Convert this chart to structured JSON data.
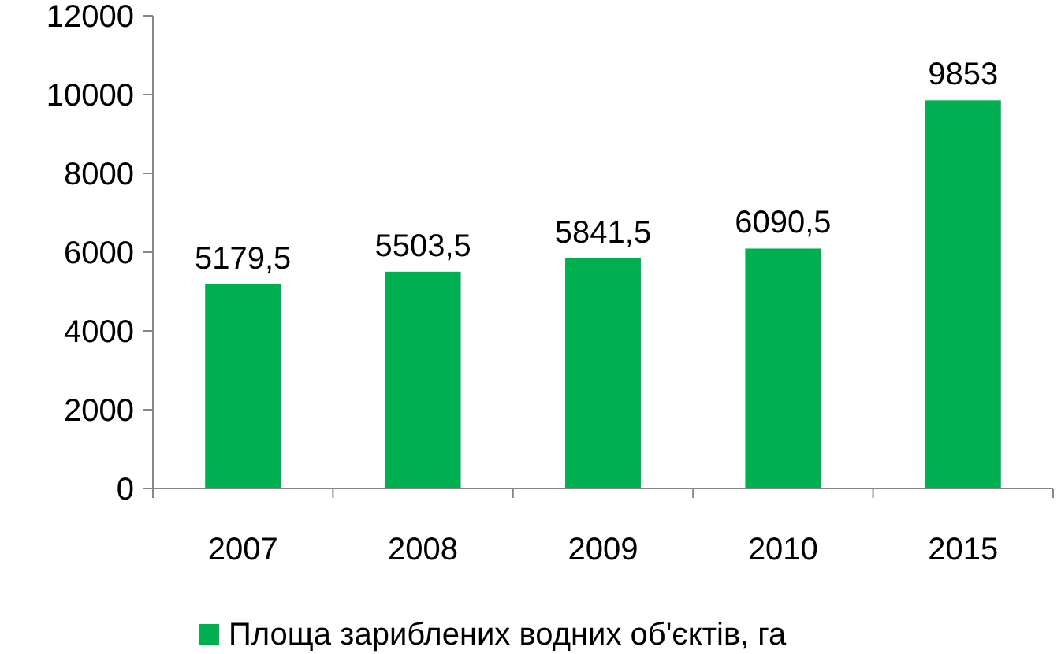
{
  "chart_data": {
    "type": "bar",
    "categories": [
      "2007",
      "2008",
      "2009",
      "2010",
      "2015"
    ],
    "series": [
      {
        "name": "Площа зариблених водних об'єктів, га",
        "color": "#00b050",
        "values": [
          5179.5,
          5503.5,
          5841.5,
          6090.5,
          9853
        ],
        "value_labels": [
          "5179,5",
          "5503,5",
          "5841,5",
          "6090,5",
          "9853"
        ]
      }
    ],
    "ylim": [
      0,
      12000
    ],
    "yticks": [
      0,
      2000,
      4000,
      6000,
      8000,
      10000,
      12000
    ],
    "grid": false,
    "legend": "bottom"
  }
}
